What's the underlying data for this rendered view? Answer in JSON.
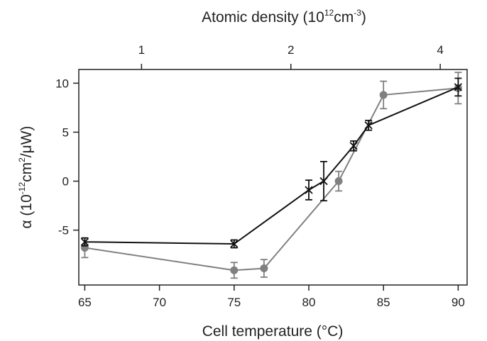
{
  "chart_data": {
    "type": "line",
    "title": "",
    "xlabel": "Cell temperature (°C)",
    "ylabel_parts": [
      "α (10",
      "-12",
      "cm",
      "2",
      "/μW)"
    ],
    "top_xlabel_parts": [
      "Atomic density (10",
      "12",
      "cm",
      "-3",
      ")"
    ],
    "xlim": [
      64.6,
      90.6
    ],
    "ylim": [
      -10.6,
      11.4
    ],
    "x_ticks": [
      65,
      70,
      75,
      80,
      85,
      90
    ],
    "y_ticks": [
      -5,
      0,
      5,
      10
    ],
    "top_ticks": [
      {
        "label": "1",
        "x": 68.8
      },
      {
        "label": "2",
        "x": 78.8
      },
      {
        "label": "4",
        "x": 88.8
      }
    ],
    "grid": false,
    "series": [
      {
        "color": "#808080",
        "marker": "circle",
        "x": [
          65,
          75,
          77,
          82,
          85,
          90
        ],
        "y": [
          -6.8,
          -9.1,
          -8.9,
          0.0,
          8.8,
          9.5
        ],
        "err": [
          1.0,
          0.8,
          0.9,
          1.0,
          1.4,
          1.6
        ]
      },
      {
        "color": "#111111",
        "marker": "x",
        "x": [
          65,
          75,
          80,
          81,
          83,
          84,
          90
        ],
        "y": [
          -6.2,
          -6.4,
          -0.9,
          0.0,
          3.6,
          5.7,
          9.6
        ],
        "err": [
          0.4,
          0.4,
          1.0,
          2.0,
          0.5,
          0.5,
          0.9
        ]
      }
    ]
  }
}
